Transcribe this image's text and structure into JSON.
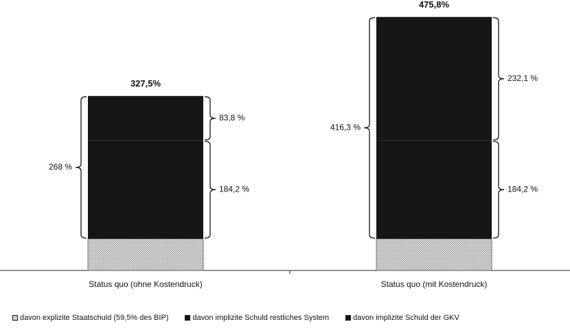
{
  "chart_data": {
    "type": "bar",
    "stacked": true,
    "categories": [
      "Status quo (ohne Kostendruck)",
      "Status quo (mit Kostendruck)"
    ],
    "totals": [
      "327,5%",
      "475,8%"
    ],
    "series": [
      {
        "name": "davon explizite Staatschuld (59,5% des BIP)",
        "values": [
          59.5,
          59.5
        ],
        "labels": [
          "",
          ""
        ],
        "color": "#d4d4d4",
        "pattern": "dotted"
      },
      {
        "name": "davon implizite Schuld restliches System",
        "values": [
          184.2,
          184.2
        ],
        "labels": [
          "184,2 %",
          "184,2 %"
        ],
        "color": "#161616"
      },
      {
        "name": "davon implizite Schuld der GKV",
        "values": [
          83.8,
          232.1
        ],
        "labels": [
          "83,8 %",
          "232,1 %"
        ],
        "color": "#161616"
      }
    ],
    "implicit_labels": [
      "268 %",
      "416,3 %"
    ],
    "ylim": [
      0,
      500
    ],
    "grid": false,
    "legend_position": "bottom"
  }
}
